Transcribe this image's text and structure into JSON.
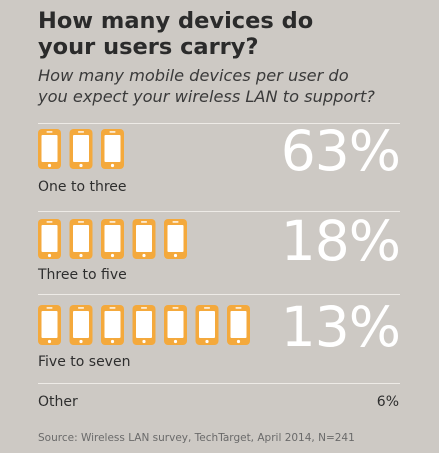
{
  "title": "How many devices do\nyour users carry?",
  "subtitle": "How many mobile devices per user do\nyou expect your wireless LAN to support?",
  "colors": {
    "background": "#cdc9c4",
    "phone": "#f4a93c",
    "phone_screen": "#ffffff",
    "percent_text": "#ffffff"
  },
  "icon": "mobile-phone-icon",
  "chart_data": {
    "type": "bar",
    "title": "How many devices do your users carry?",
    "subtitle": "How many mobile devices per user do you expect your wireless LAN to support?",
    "categories": [
      "One to three",
      "Three to five",
      "Five to seven",
      "Other"
    ],
    "values": [
      63,
      18,
      13,
      6
    ],
    "value_labels": [
      "63%",
      "18%",
      "13%",
      "6%"
    ],
    "phones_shown": [
      3,
      5,
      7,
      0
    ],
    "unit": "%",
    "grid": false
  },
  "rows": [
    {
      "label": "One to three",
      "percent": "63%",
      "phones": 3
    },
    {
      "label": "Three to five",
      "percent": "18%",
      "phones": 5
    },
    {
      "label": "Five to seven",
      "percent": "13%",
      "phones": 7
    }
  ],
  "other": {
    "label": "Other",
    "percent": "6%"
  },
  "source": "Source: Wireless LAN survey, TechTarget, April 2014, N=241"
}
